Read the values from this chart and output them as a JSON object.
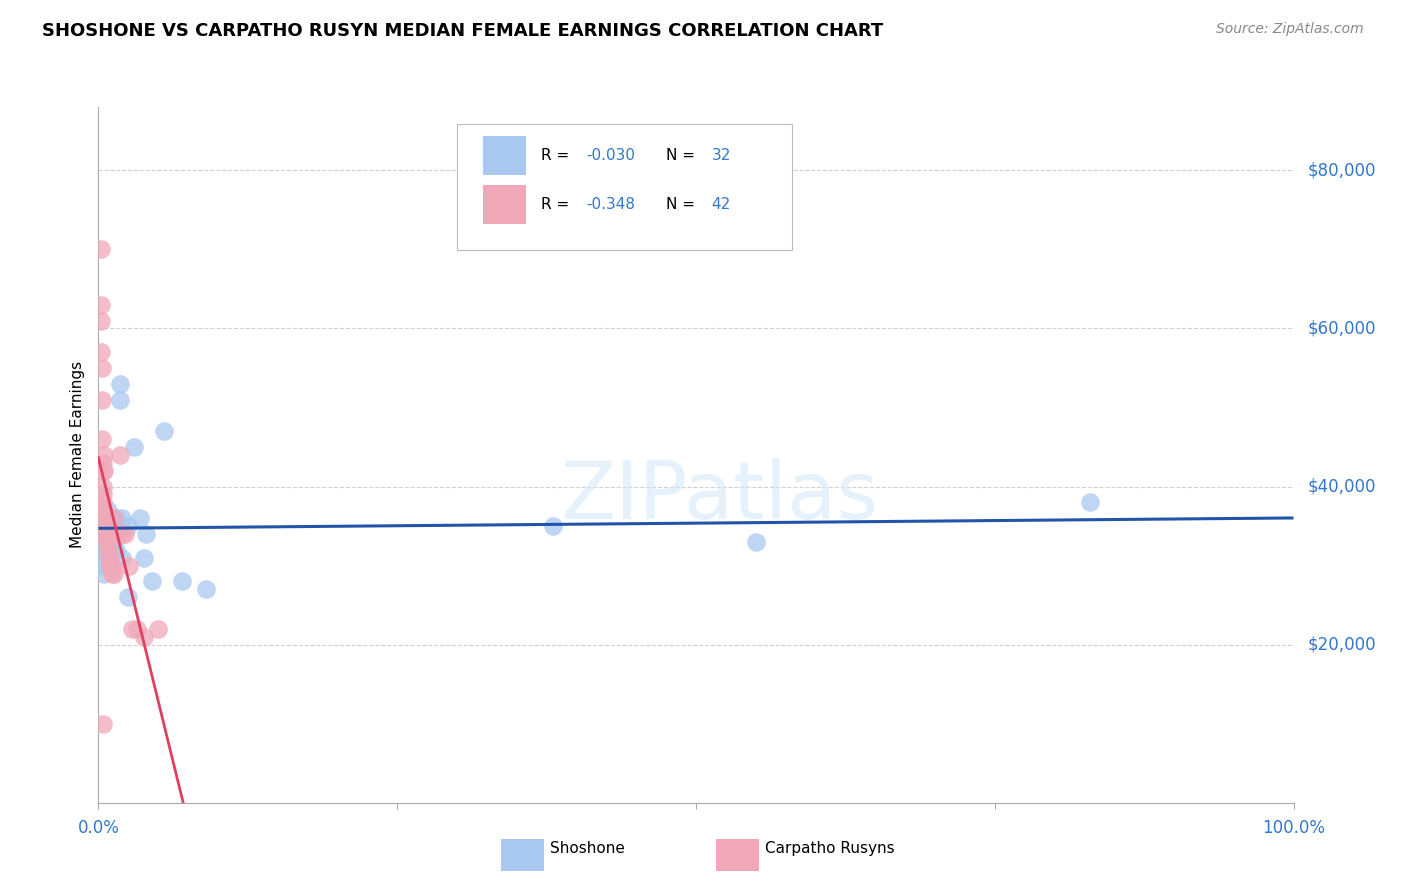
{
  "title": "SHOSHONE VS CARPATHO RUSYN MEDIAN FEMALE EARNINGS CORRELATION CHART",
  "source": "Source: ZipAtlas.com",
  "ylabel": "Median Female Earnings",
  "xlim": [
    0.0,
    1.0
  ],
  "ylim": [
    0,
    88000
  ],
  "ytick_vals": [
    20000,
    40000,
    60000,
    80000
  ],
  "ytick_labels": [
    "$20,000",
    "$40,000",
    "$60,000",
    "$80,000"
  ],
  "legend_r_shoshone": "-0.030",
  "legend_n_shoshone": "32",
  "legend_r_carpatho": "-0.348",
  "legend_n_carpatho": "42",
  "legend_label_shoshone": "Shoshone",
  "legend_label_carpatho": "Carpatho Rusyns",
  "shoshone_color": "#a8c8f0",
  "carpatho_color": "#f0a8b8",
  "shoshone_line_color": "#2255aa",
  "carpatho_line_color": "#e04060",
  "grid_color": "#cccccc",
  "text_color": "#3377cc",
  "watermark": "ZIPatlas",
  "shoshone_x": [
    0.005,
    0.005,
    0.005,
    0.005,
    0.005,
    0.005,
    0.008,
    0.008,
    0.01,
    0.01,
    0.012,
    0.012,
    0.012,
    0.015,
    0.015,
    0.018,
    0.018,
    0.02,
    0.02,
    0.025,
    0.025,
    0.03,
    0.035,
    0.038,
    0.04,
    0.045,
    0.055,
    0.07,
    0.09,
    0.38,
    0.55,
    0.83
  ],
  "shoshone_y": [
    35000,
    33000,
    32000,
    31000,
    30000,
    29000,
    37000,
    32000,
    36000,
    34000,
    36000,
    34000,
    33000,
    36000,
    32000,
    53000,
    51000,
    36000,
    31000,
    35000,
    26000,
    45000,
    36000,
    31000,
    34000,
    28000,
    47000,
    28000,
    27000,
    35000,
    33000,
    38000
  ],
  "carpatho_x": [
    0.002,
    0.002,
    0.002,
    0.002,
    0.003,
    0.003,
    0.003,
    0.004,
    0.004,
    0.004,
    0.004,
    0.004,
    0.004,
    0.005,
    0.005,
    0.005,
    0.006,
    0.006,
    0.006,
    0.007,
    0.007,
    0.007,
    0.008,
    0.008,
    0.009,
    0.01,
    0.01,
    0.011,
    0.011,
    0.013,
    0.013,
    0.016,
    0.018,
    0.02,
    0.022,
    0.026,
    0.028,
    0.032,
    0.038,
    0.05,
    0.005,
    0.004
  ],
  "carpatho_y": [
    70000,
    63000,
    61000,
    57000,
    55000,
    51000,
    46000,
    43000,
    42000,
    40000,
    39000,
    38000,
    37000,
    42000,
    37000,
    35000,
    36000,
    35000,
    34000,
    34000,
    33000,
    33000,
    32000,
    32000,
    31000,
    31000,
    30000,
    30000,
    29000,
    29000,
    36000,
    34000,
    44000,
    34000,
    34000,
    30000,
    22000,
    22000,
    21000,
    22000,
    44000,
    10000
  ]
}
